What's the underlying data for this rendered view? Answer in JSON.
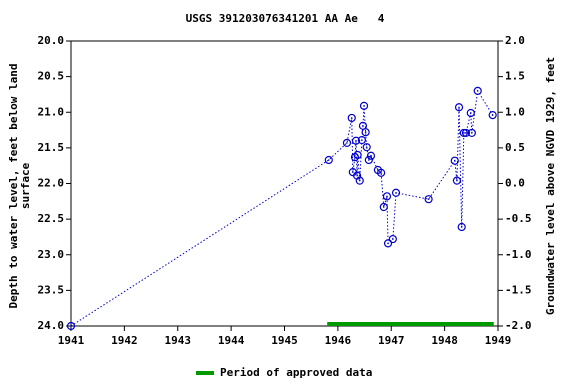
{
  "chart_data": {
    "type": "scatter",
    "title": "USGS 391203076341201 AA Ae   4",
    "ylabel": [
      "Depth to water level, feet below land",
      "surface"
    ],
    "y2label": "Groundwater level above NGVD 1929, feet",
    "xlim": [
      1941,
      1949
    ],
    "xticks": [
      1941,
      1942,
      1943,
      1944,
      1945,
      1946,
      1947,
      1948,
      1949
    ],
    "ylim": [
      24,
      20
    ],
    "yticks": [
      {
        "value": 20,
        "label": "20.0"
      },
      {
        "value": 20.5,
        "label": "20.5"
      },
      {
        "value": 21,
        "label": "21.0"
      },
      {
        "value": 21.5,
        "label": "21.5"
      },
      {
        "value": 22,
        "label": "22.0"
      },
      {
        "value": 22.5,
        "label": "22.5"
      },
      {
        "value": 23,
        "label": "23.0"
      },
      {
        "value": 23.5,
        "label": "23.5"
      },
      {
        "value": 24,
        "label": "24.0"
      }
    ],
    "y2lim": [
      -2,
      2
    ],
    "y2ticks": [
      {
        "value": 2,
        "label": "2.0"
      },
      {
        "value": 1.5,
        "label": "1.5"
      },
      {
        "value": 1,
        "label": "1.0"
      },
      {
        "value": 0.5,
        "label": "0.5"
      },
      {
        "value": 0,
        "label": "0.0"
      },
      {
        "value": -0.5,
        "label": "-0.5"
      },
      {
        "value": -1,
        "label": "-1.0"
      },
      {
        "value": -1.5,
        "label": "-1.5"
      },
      {
        "value": -2,
        "label": "-2.0"
      }
    ],
    "series": [
      {
        "color": "#0000cc",
        "x": [
          1941.0,
          1945.83,
          1946.17,
          1946.26,
          1946.28,
          1946.32,
          1946.34,
          1946.36,
          1946.37,
          1946.41,
          1946.45,
          1946.47,
          1946.49,
          1946.52,
          1946.54,
          1946.58,
          1946.62,
          1946.75,
          1946.81,
          1946.86,
          1946.92,
          1946.94,
          1947.03,
          1947.09,
          1947.7,
          1948.19,
          1948.23,
          1948.27,
          1948.32,
          1948.36,
          1948.4,
          1948.49,
          1948.51,
          1948.62,
          1948.9
        ],
        "values": [
          24.0,
          21.67,
          21.43,
          21.08,
          21.84,
          21.63,
          21.4,
          21.89,
          21.6,
          21.96,
          21.39,
          21.19,
          20.91,
          21.28,
          21.49,
          21.67,
          21.61,
          21.81,
          21.85,
          22.33,
          22.18,
          22.84,
          22.78,
          22.13,
          22.22,
          21.68,
          21.96,
          20.93,
          22.61,
          21.29,
          21.29,
          21.01,
          21.29,
          20.7,
          21.04
        ]
      }
    ],
    "approved_period": {
      "name": "Period of approved data",
      "color": "#009900",
      "x": [
        1945.8,
        1948.92
      ]
    }
  }
}
